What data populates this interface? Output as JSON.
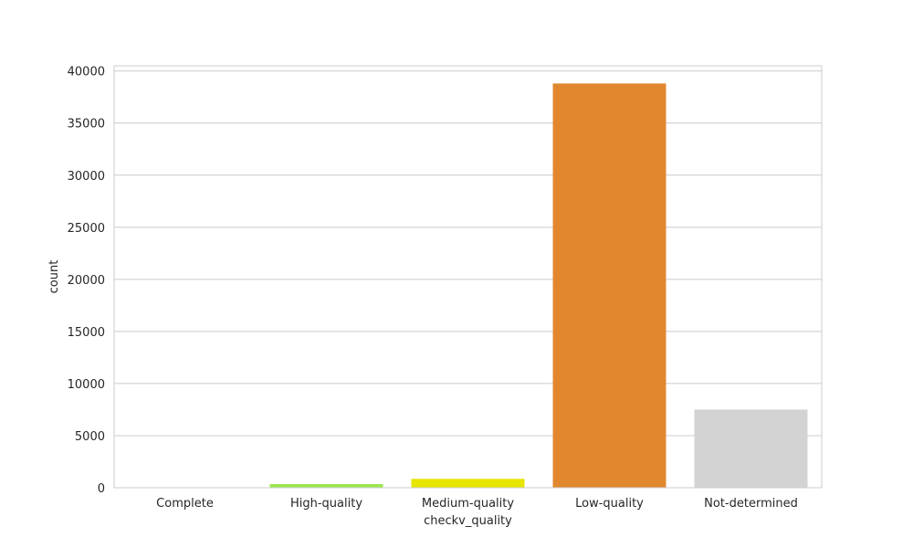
{
  "chart_data": {
    "type": "bar",
    "title": "",
    "xlabel": "checkv_quality",
    "ylabel": "count",
    "categories": [
      "Complete",
      "High-quality",
      "Medium-quality",
      "Low-quality",
      "Not-determined"
    ],
    "values": [
      20,
      350,
      850,
      38800,
      7500
    ],
    "colors": [
      "#8fbc8f",
      "#9ae64f",
      "#e6e600",
      "#e1882f",
      "#d3d3d3"
    ],
    "ylim": [
      0,
      40500
    ],
    "yticks": [
      0,
      5000,
      10000,
      15000,
      20000,
      25000,
      30000,
      35000,
      40000
    ],
    "ytick_labels": [
      "0",
      "5000",
      "10000",
      "15000",
      "20000",
      "25000",
      "30000",
      "35000",
      "40000"
    ],
    "grid": true,
    "legend": "none"
  }
}
